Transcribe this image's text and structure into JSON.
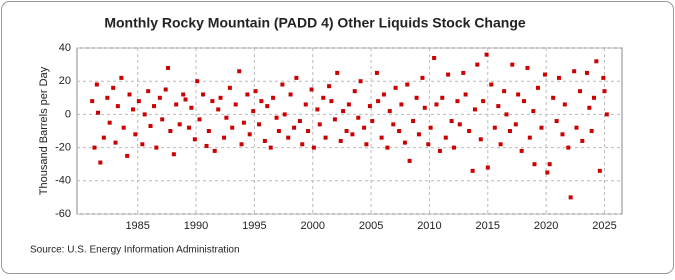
{
  "chart_data": {
    "type": "scatter",
    "title": "Monthly Rocky Mountain (PADD 4) Other Liquids Stock Change",
    "y_label": "Thousand Barrels per Day",
    "source": "Source: U.S. Energy Information Administration",
    "color": "#cc0000",
    "xlim": [
      1979.8,
      2026.5
    ],
    "xticks": [
      1985,
      1990,
      1995,
      2000,
      2005,
      2010,
      2015,
      2020,
      2025
    ],
    "ylim": [
      -60,
      40
    ],
    "yticks": [
      -60,
      -40,
      -20,
      0,
      20,
      40
    ],
    "grid": true,
    "x": [
      1981.1,
      1981.3,
      1981.5,
      1981.6,
      1981.8,
      1982.1,
      1982.4,
      1982.6,
      1982.9,
      1983.1,
      1983.3,
      1983.6,
      1983.8,
      1984.1,
      1984.3,
      1984.6,
      1984.8,
      1985.1,
      1985.4,
      1985.6,
      1985.9,
      1986.1,
      1986.4,
      1986.6,
      1986.9,
      1987.1,
      1987.4,
      1987.6,
      1987.8,
      1988.1,
      1988.3,
      1988.6,
      1988.9,
      1989.1,
      1989.4,
      1989.6,
      1989.9,
      1990.1,
      1990.3,
      1990.6,
      1990.9,
      1991.1,
      1991.4,
      1991.6,
      1991.9,
      1992.1,
      1992.4,
      1992.6,
      1992.9,
      1993.1,
      1993.4,
      1993.7,
      1993.9,
      1994.1,
      1994.4,
      1994.6,
      1994.9,
      1995.1,
      1995.4,
      1995.6,
      1995.9,
      1996.1,
      1996.4,
      1996.6,
      1996.9,
      1997.1,
      1997.4,
      1997.6,
      1997.9,
      1998.1,
      1998.4,
      1998.6,
      1998.9,
      1999.1,
      1999.4,
      1999.6,
      1999.9,
      2000.1,
      2000.4,
      2000.6,
      2000.9,
      2001.1,
      2001.4,
      2001.6,
      2001.9,
      2002.1,
      2002.4,
      2002.6,
      2002.9,
      2003.1,
      2003.4,
      2003.6,
      2003.9,
      2004.1,
      2004.4,
      2004.6,
      2004.9,
      2005.1,
      2005.5,
      2005.6,
      2005.9,
      2006.1,
      2006.4,
      2006.6,
      2006.9,
      2007.1,
      2007.4,
      2007.6,
      2007.9,
      2008.1,
      2008.3,
      2008.6,
      2008.9,
      2009.1,
      2009.4,
      2009.6,
      2009.9,
      2010.1,
      2010.4,
      2010.6,
      2010.9,
      2011.1,
      2011.4,
      2011.6,
      2011.9,
      2012.1,
      2012.4,
      2012.6,
      2012.9,
      2013.1,
      2013.4,
      2013.7,
      2013.9,
      2014.1,
      2014.4,
      2014.6,
      2014.9,
      2015.0,
      2015.3,
      2015.6,
      2015.9,
      2016.1,
      2016.4,
      2016.6,
      2016.9,
      2017.1,
      2017.4,
      2017.6,
      2017.9,
      2018.1,
      2018.4,
      2018.6,
      2018.9,
      2019.0,
      2019.3,
      2019.6,
      2019.9,
      2020.1,
      2020.3,
      2020.6,
      2020.9,
      2021.1,
      2021.4,
      2021.6,
      2021.9,
      2022.1,
      2022.4,
      2022.6,
      2022.9,
      2023.1,
      2023.5,
      2023.7,
      2023.9,
      2024.1,
      2024.3,
      2024.6,
      2024.9,
      2025.0,
      2025.2
    ],
    "values": [
      8,
      -20,
      18,
      1,
      -29,
      -14,
      10,
      -5,
      16,
      -17,
      5,
      22,
      -8,
      -25,
      12,
      3,
      -12,
      8,
      -18,
      0,
      14,
      -7,
      5,
      -20,
      10,
      -3,
      15,
      28,
      -10,
      -24,
      6,
      -6,
      12,
      9,
      -8,
      4,
      -15,
      20,
      -3,
      12,
      -19,
      -10,
      8,
      -22,
      3,
      10,
      -14,
      -2,
      16,
      -8,
      6,
      26,
      -18,
      -5,
      12,
      -12,
      2,
      14,
      -6,
      8,
      -16,
      5,
      -20,
      10,
      -2,
      -10,
      18,
      0,
      -14,
      12,
      -8,
      22,
      -4,
      -18,
      6,
      -10,
      15,
      -20,
      3,
      -6,
      10,
      -14,
      17,
      8,
      -3,
      25,
      -16,
      2,
      -10,
      6,
      -12,
      14,
      -2,
      20,
      -8,
      -18,
      5,
      -4,
      25,
      8,
      -14,
      12,
      -20,
      2,
      -6,
      16,
      -10,
      6,
      -17,
      18,
      -28,
      -4,
      10,
      -12,
      22,
      4,
      -18,
      -8,
      34,
      6,
      -22,
      10,
      -14,
      24,
      -4,
      -20,
      8,
      -6,
      25,
      12,
      -10,
      -34,
      3,
      30,
      -15,
      8,
      36,
      -32,
      18,
      -8,
      5,
      -18,
      14,
      0,
      -10,
      30,
      -6,
      12,
      -22,
      8,
      28,
      -14,
      2,
      -30,
      16,
      -8,
      24,
      -35,
      -30,
      10,
      -4,
      22,
      -12,
      6,
      -20,
      -50,
      26,
      -8,
      14,
      -16,
      25,
      4,
      -10,
      10,
      32,
      -34,
      22,
      14,
      0
    ]
  }
}
